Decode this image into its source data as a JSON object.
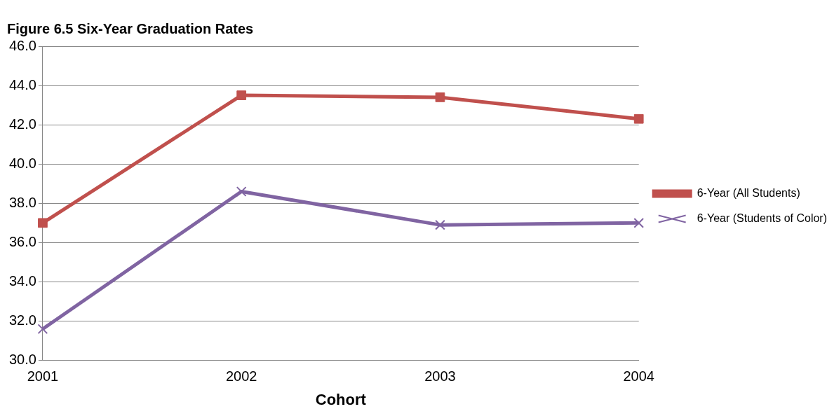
{
  "chart_data": {
    "type": "line",
    "title": "Figure 6.5 Six-Year Graduation Rates",
    "xlabel": "Cohort",
    "categories": [
      "2001",
      "2002",
      "2003",
      "2004"
    ],
    "series": [
      {
        "name": "6-Year (All Students)",
        "color": "#c0504d",
        "marker": "square",
        "values": [
          37.0,
          43.5,
          43.4,
          42.3
        ]
      },
      {
        "name": "6-Year (Students of Color)",
        "color": "#8064a2",
        "marker": "cross",
        "values": [
          31.6,
          38.6,
          36.9,
          37.0
        ]
      }
    ],
    "ylim": [
      30,
      46
    ],
    "yticks": [
      {
        "value": 30,
        "label": "30.0"
      },
      {
        "value": 32,
        "label": "32.0"
      },
      {
        "value": 34,
        "label": "34.0"
      },
      {
        "value": 36,
        "label": "36.0"
      },
      {
        "value": 38,
        "label": "38.0"
      },
      {
        "value": 40,
        "label": "40.0"
      },
      {
        "value": 42,
        "label": "42.0"
      },
      {
        "value": 44,
        "label": "44.0"
      },
      {
        "value": 46,
        "label": "46.0"
      }
    ],
    "grid": "y",
    "legend": "right",
    "line_style": "solid"
  }
}
